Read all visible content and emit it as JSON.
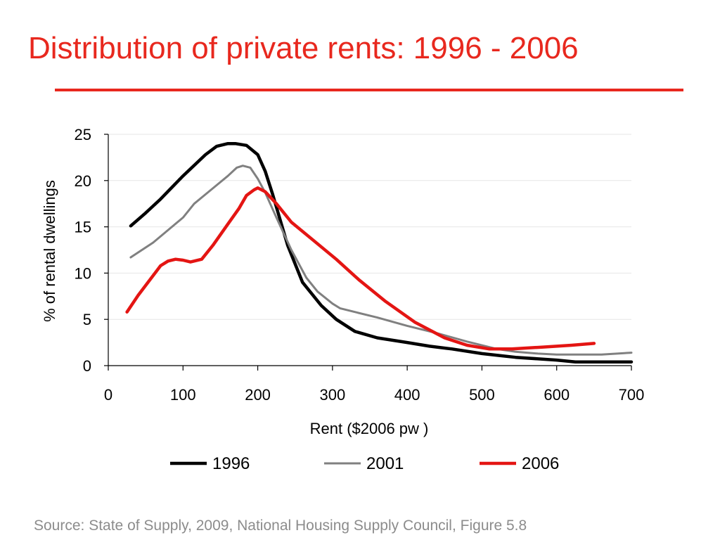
{
  "slide": {
    "title": "Distribution of private rents: 1996 - 2006",
    "source": "Source: State of Supply, 2009, National Housing Supply Council, Figure 5.8",
    "colors": {
      "title": "#e8281e",
      "source": "#8c8c8c"
    }
  },
  "chart_data": {
    "type": "line",
    "xlabel": "Rent ($2006 pw )",
    "ylabel": "% of rental dwellings",
    "xlim": [
      0,
      700
    ],
    "ylim": [
      0,
      25
    ],
    "xticks": [
      0,
      100,
      200,
      300,
      400,
      500,
      600,
      700
    ],
    "yticks": [
      0,
      5,
      10,
      15,
      20,
      25
    ],
    "grid": "horizontal",
    "legend": "bottom",
    "series": [
      {
        "name": "1996",
        "color": "#000000",
        "x": [
          30,
          50,
          70,
          100,
          130,
          145,
          160,
          170,
          185,
          200,
          210,
          220,
          240,
          260,
          285,
          305,
          330,
          360,
          400,
          430,
          460,
          500,
          545,
          600,
          625,
          700
        ],
        "y": [
          15.1,
          16.5,
          18.0,
          20.5,
          22.8,
          23.7,
          24.0,
          24.0,
          23.8,
          22.8,
          21.0,
          18.5,
          13.0,
          9.0,
          6.5,
          5.0,
          3.7,
          3.0,
          2.5,
          2.1,
          1.8,
          1.3,
          0.9,
          0.6,
          0.4,
          0.4
        ]
      },
      {
        "name": "2001",
        "color": "#808080",
        "x": [
          30,
          60,
          100,
          115,
          130,
          145,
          160,
          172,
          180,
          190,
          200,
          210,
          225,
          245,
          265,
          280,
          300,
          310,
          330,
          360,
          400,
          440,
          480,
          520,
          545,
          575,
          600,
          640,
          660,
          700
        ],
        "y": [
          11.7,
          13.3,
          16.0,
          17.5,
          18.5,
          19.5,
          20.5,
          21.4,
          21.6,
          21.4,
          20.2,
          18.7,
          16.0,
          12.5,
          9.5,
          8.0,
          6.7,
          6.2,
          5.8,
          5.2,
          4.3,
          3.5,
          2.6,
          1.8,
          1.5,
          1.3,
          1.2,
          1.2,
          1.2,
          1.4
        ]
      },
      {
        "name": "2006",
        "color": "#e41513",
        "x": [
          25,
          40,
          55,
          70,
          80,
          90,
          100,
          110,
          125,
          140,
          160,
          175,
          185,
          195,
          200,
          210,
          225,
          245,
          275,
          305,
          335,
          370,
          410,
          450,
          480,
          510,
          540,
          580,
          620,
          650
        ],
        "y": [
          5.8,
          7.6,
          9.2,
          10.8,
          11.3,
          11.5,
          11.4,
          11.2,
          11.5,
          13.0,
          15.3,
          17.0,
          18.4,
          19.0,
          19.2,
          18.8,
          17.5,
          15.5,
          13.5,
          11.5,
          9.3,
          7.0,
          4.7,
          3.0,
          2.2,
          1.8,
          1.8,
          2.0,
          2.2,
          2.4
        ]
      }
    ]
  }
}
